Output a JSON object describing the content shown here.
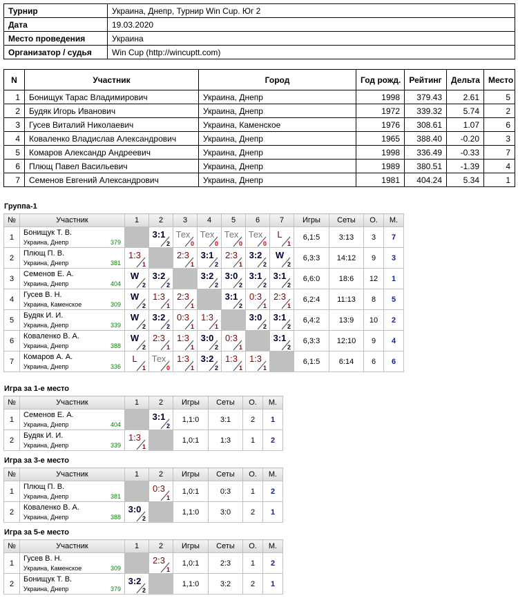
{
  "info": {
    "rows": [
      [
        "Турнир",
        "Украина, Днепр, Турнир Win Cup. Юг 2"
      ],
      [
        "Дата",
        "19.03.2020"
      ],
      [
        "Место проведения",
        "Украина"
      ],
      [
        "Организатор / судья",
        "Win Cup (http://wincuptt.com)"
      ]
    ]
  },
  "participants": {
    "header": [
      "N",
      "Участник",
      "Город",
      "Год рожд.",
      "Рейтинг",
      "Дельта",
      "Место"
    ],
    "rows": [
      [
        "1",
        "Бонищук Тарас Владимирович",
        "Украина, Днепр",
        "1998",
        "379.43",
        "2.61",
        "5"
      ],
      [
        "2",
        "Будяк Игорь Иванович",
        "Украина, Днепр",
        "1972",
        "339.32",
        "5.74",
        "2"
      ],
      [
        "3",
        "Гусев Виталий Николаевич",
        "Украина, Каменское",
        "1976",
        "308.61",
        "1.07",
        "6"
      ],
      [
        "4",
        "Коваленко Владислав Александрович",
        "Украина, Днепр",
        "1965",
        "388.40",
        "-0.20",
        "3"
      ],
      [
        "5",
        "Комаров Александр Андреевич",
        "Украина, Днепр",
        "1998",
        "336.49",
        "-0.33",
        "7"
      ],
      [
        "6",
        "Плющ Павел Васильевич",
        "Украина, Днепр",
        "1989",
        "380.51",
        "-1.39",
        "4"
      ],
      [
        "7",
        "Семенов Евгений Александрович",
        "Украина, Днепр",
        "1981",
        "404.24",
        "5.34",
        "1"
      ]
    ]
  },
  "groups": [
    {
      "title": "Группа-1",
      "header": [
        "№",
        "Участник",
        "1",
        "2",
        "3",
        "4",
        "5",
        "6",
        "7",
        "Игры",
        "Сеты",
        "О.",
        "М."
      ],
      "rows": [
        {
          "n": "1",
          "name": "Бонищук Т. В.",
          "city": "Украина, Днепр",
          "rating": "379",
          "cells": [
            null,
            {
              "score": "3:1",
              "points": "2"
            },
            {
              "score": "Тех",
              "points": "0"
            },
            {
              "score": "Тех",
              "points": "0"
            },
            {
              "score": "Тех",
              "points": "0"
            },
            {
              "score": "Тех",
              "points": "0"
            },
            {
              "score": "L",
              "points": "1"
            }
          ],
          "games": "6,1:5",
          "sets": "3:13",
          "points": "3",
          "place": "7"
        },
        {
          "n": "2",
          "name": "Плющ П. В.",
          "city": "Украина, Днепр",
          "rating": "381",
          "cells": [
            {
              "score": "1:3",
              "points": "1"
            },
            null,
            {
              "score": "2:3",
              "points": "1"
            },
            {
              "score": "3:1",
              "points": "2"
            },
            {
              "score": "2:3",
              "points": "1"
            },
            {
              "score": "3:2",
              "points": "2"
            },
            {
              "score": "W",
              "points": "2"
            }
          ],
          "games": "6,3:3",
          "sets": "14:12",
          "points": "9",
          "place": "3"
        },
        {
          "n": "3",
          "name": "Семенов Е. А.",
          "city": "Украина, Днепр",
          "rating": "404",
          "cells": [
            {
              "score": "W",
              "points": "2"
            },
            {
              "score": "3:2",
              "points": "2"
            },
            null,
            {
              "score": "3:2",
              "points": "2"
            },
            {
              "score": "3:0",
              "points": "2"
            },
            {
              "score": "3:1",
              "points": "2"
            },
            {
              "score": "3:1",
              "points": "2"
            }
          ],
          "games": "6,6:0",
          "sets": "18:6",
          "points": "12",
          "place": "1"
        },
        {
          "n": "4",
          "name": "Гусев В. Н.",
          "city": "Украина, Каменское",
          "rating": "309",
          "cells": [
            {
              "score": "W",
              "points": "2"
            },
            {
              "score": "1:3",
              "points": "1"
            },
            {
              "score": "2:3",
              "points": "1"
            },
            null,
            {
              "score": "3:1",
              "points": "2"
            },
            {
              "score": "0:3",
              "points": "1"
            },
            {
              "score": "2:3",
              "points": "1"
            }
          ],
          "games": "6,2:4",
          "sets": "11:13",
          "points": "8",
          "place": "5"
        },
        {
          "n": "5",
          "name": "Будяк И. И.",
          "city": "Украина, Днепр",
          "rating": "339",
          "cells": [
            {
              "score": "W",
              "points": "2"
            },
            {
              "score": "3:2",
              "points": "2"
            },
            {
              "score": "0:3",
              "points": "1"
            },
            {
              "score": "1:3",
              "points": "1"
            },
            null,
            {
              "score": "3:0",
              "points": "2"
            },
            {
              "score": "3:1",
              "points": "2"
            }
          ],
          "games": "6,4:2",
          "sets": "13:9",
          "points": "10",
          "place": "2"
        },
        {
          "n": "6",
          "name": "Коваленко В. А.",
          "city": "Украина, Днепр",
          "rating": "388",
          "cells": [
            {
              "score": "W",
              "points": "2"
            },
            {
              "score": "2:3",
              "points": "1"
            },
            {
              "score": "1:3",
              "points": "1"
            },
            {
              "score": "3:0",
              "points": "2"
            },
            {
              "score": "0:3",
              "points": "1"
            },
            null,
            {
              "score": "3:1",
              "points": "2"
            }
          ],
          "games": "6,3:3",
          "sets": "12:10",
          "points": "9",
          "place": "4"
        },
        {
          "n": "7",
          "name": "Комаров А. А.",
          "city": "Украина, Днепр",
          "rating": "336",
          "cells": [
            {
              "score": "L",
              "points": "1"
            },
            {
              "score": "Тех",
              "points": "0"
            },
            {
              "score": "1:3",
              "points": "1"
            },
            {
              "score": "3:2",
              "points": "2"
            },
            {
              "score": "1:3",
              "points": "1"
            },
            {
              "score": "1:3",
              "points": "1"
            },
            null
          ],
          "games": "6,1:5",
          "sets": "6:14",
          "points": "6",
          "place": "6"
        }
      ]
    },
    {
      "title": "Игра за 1-е место",
      "header": [
        "№",
        "Участник",
        "1",
        "2",
        "Игры",
        "Сеты",
        "О.",
        "М."
      ],
      "rows": [
        {
          "n": "1",
          "name": "Семенов Е. А.",
          "city": "Украина, Днепр",
          "rating": "404",
          "cells": [
            null,
            {
              "score": "3:1",
              "points": "2"
            }
          ],
          "games": "1,1:0",
          "sets": "3:1",
          "points": "2",
          "place": "1"
        },
        {
          "n": "2",
          "name": "Будяк И. И.",
          "city": "Украина, Днепр",
          "rating": "339",
          "cells": [
            {
              "score": "1:3",
              "points": "1"
            },
            null
          ],
          "games": "1,0:1",
          "sets": "1:3",
          "points": "1",
          "place": "2"
        }
      ]
    },
    {
      "title": "Игра за 3-е место",
      "header": [
        "№",
        "Участник",
        "1",
        "2",
        "Игры",
        "Сеты",
        "О.",
        "М."
      ],
      "rows": [
        {
          "n": "1",
          "name": "Плющ П. В.",
          "city": "Украина, Днепр",
          "rating": "381",
          "cells": [
            null,
            {
              "score": "0:3",
              "points": "1"
            }
          ],
          "games": "1,0:1",
          "sets": "0:3",
          "points": "1",
          "place": "2"
        },
        {
          "n": "2",
          "name": "Коваленко В. А.",
          "city": "Украина, Днепр",
          "rating": "388",
          "cells": [
            {
              "score": "3:0",
              "points": "2"
            },
            null
          ],
          "games": "1,1:0",
          "sets": "3:0",
          "points": "2",
          "place": "1"
        }
      ]
    },
    {
      "title": "Игра за 5-е место",
      "header": [
        "№",
        "Участник",
        "1",
        "2",
        "Игры",
        "Сеты",
        "О.",
        "М."
      ],
      "rows": [
        {
          "n": "1",
          "name": "Гусев В. Н.",
          "city": "Украина, Каменское",
          "rating": "309",
          "cells": [
            null,
            {
              "score": "2:3",
              "points": "1"
            }
          ],
          "games": "1,0:1",
          "sets": "2:3",
          "points": "1",
          "place": "2"
        },
        {
          "n": "2",
          "name": "Бонищук Т. В.",
          "city": "Украина, Днепр",
          "rating": "379",
          "cells": [
            {
              "score": "3:2",
              "points": "2"
            },
            null
          ],
          "games": "1,1:0",
          "sets": "3:2",
          "points": "2",
          "place": "1"
        }
      ]
    }
  ]
}
